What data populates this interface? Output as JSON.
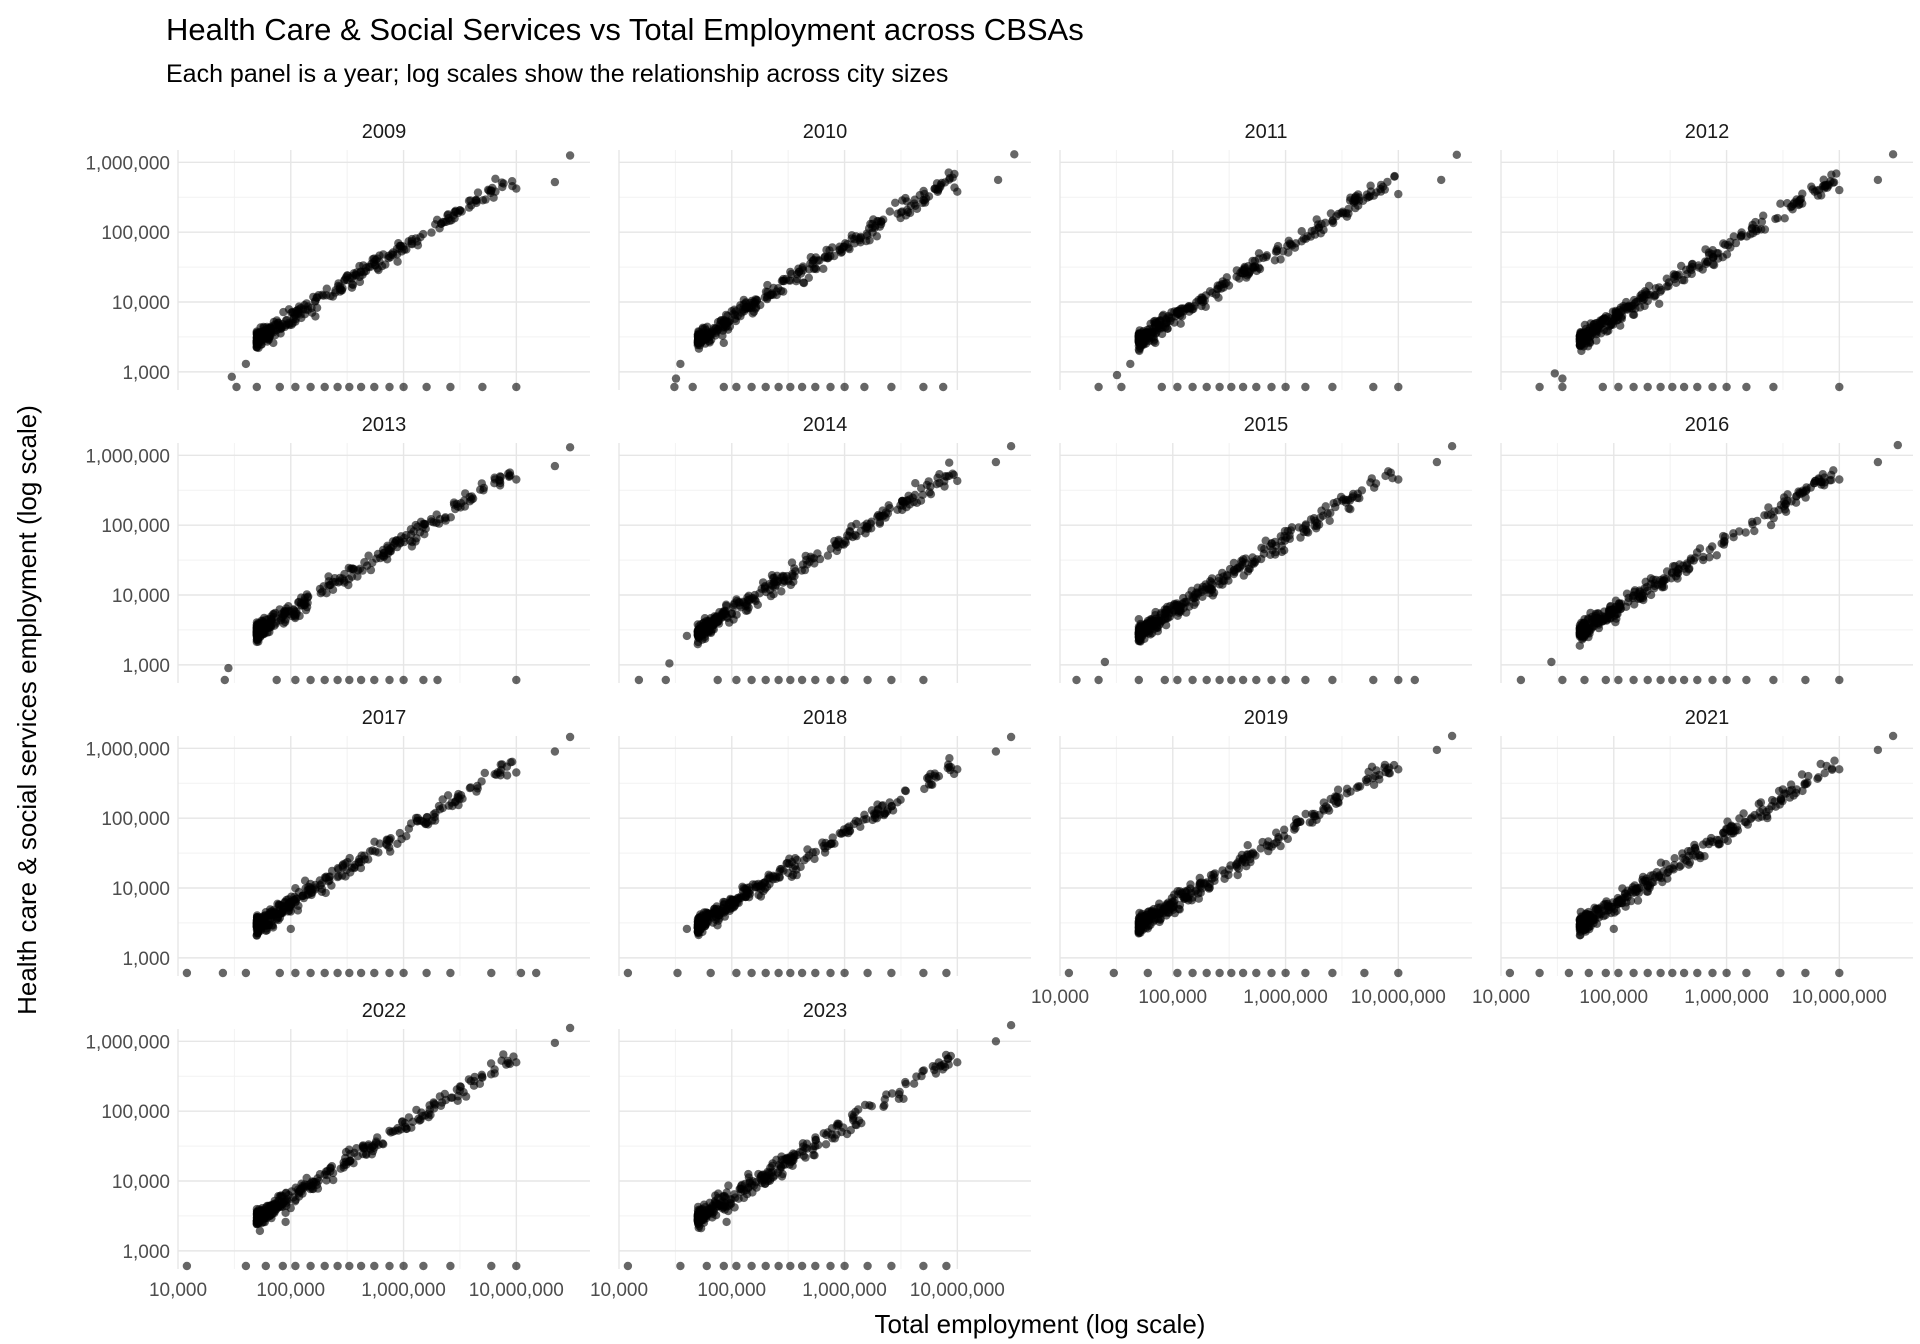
{
  "title": "Health Care & Social Services vs Total Employment across CBSAs",
  "subtitle": "Each panel is a year; log scales show the relationship across city sizes",
  "chart_data": {
    "type": "scatter",
    "facet_by": "year",
    "panels": [
      "2009",
      "2010",
      "2011",
      "2012",
      "2013",
      "2014",
      "2015",
      "2016",
      "2017",
      "2018",
      "2019",
      "2021",
      "2022",
      "2023"
    ],
    "xlabel": "Total employment (log scale)",
    "ylabel": "Health care & social services employment (log scale)",
    "x_scale": "log10",
    "y_scale": "log10",
    "xlim": [
      10000,
      45000000
    ],
    "ylim": [
      550,
      1500000
    ],
    "x_ticks": [
      10000,
      100000,
      1000000,
      10000000
    ],
    "x_tick_labels": [
      "10,000",
      "100,000",
      "1,000,000",
      "10,000,000"
    ],
    "y_ticks": [
      1000,
      10000,
      100000,
      1000000
    ],
    "y_tick_labels": [
      "1,000",
      "10,000",
      "100,000",
      "1,000,000"
    ],
    "grid": true,
    "point_color": "#000000",
    "point_alpha": 0.6,
    "trend": {
      "log_slope": 1.02,
      "log_intercept": -1.33,
      "x_range": [
        50000,
        30000000
      ]
    },
    "series": [
      {
        "panel": "2009",
        "points": [
          [
            30000,
            850
          ],
          [
            40000,
            1300
          ],
          [
            70000,
            2600
          ],
          [
            10000000,
            420000
          ],
          [
            22000000,
            520000
          ],
          [
            30000000,
            1250000
          ]
        ],
        "zero_row_x": [
          33000,
          50000,
          80000,
          110000,
          150000,
          200000,
          260000,
          330000,
          420000,
          550000,
          750000,
          1000000,
          1600000,
          2600000,
          5000000,
          10000000
        ]
      },
      {
        "panel": "2010",
        "points": [
          [
            32000,
            800
          ],
          [
            35000,
            1300
          ],
          [
            85000,
            2600
          ],
          [
            10000000,
            380000
          ],
          [
            23000000,
            560000
          ],
          [
            32000000,
            1300000
          ]
        ],
        "zero_row_x": [
          31000,
          45000,
          85000,
          110000,
          150000,
          200000,
          260000,
          330000,
          420000,
          550000,
          750000,
          1000000,
          1500000,
          2600000,
          5000000,
          7500000
        ]
      },
      {
        "panel": "2011",
        "points": [
          [
            32000,
            900
          ],
          [
            42000,
            1300
          ],
          [
            70000,
            2600
          ],
          [
            10000000,
            350000
          ],
          [
            24000000,
            560000
          ],
          [
            33000000,
            1280000
          ]
        ],
        "zero_row_x": [
          22000,
          35000,
          80000,
          110000,
          150000,
          200000,
          260000,
          330000,
          420000,
          550000,
          750000,
          1000000,
          1500000,
          2600000,
          6000000,
          10000000
        ]
      },
      {
        "panel": "2012",
        "points": [
          [
            30000,
            950
          ],
          [
            35000,
            800
          ],
          [
            70000,
            2800
          ],
          [
            10000000,
            400000
          ],
          [
            22000000,
            560000
          ],
          [
            30000000,
            1300000
          ]
        ],
        "zero_row_x": [
          22000,
          35000,
          80000,
          110000,
          150000,
          200000,
          260000,
          330000,
          420000,
          550000,
          750000,
          1000000,
          1500000,
          2600000,
          10000000
        ]
      },
      {
        "panel": "2013",
        "points": [
          [
            28000,
            900
          ],
          [
            50000,
            2700
          ],
          [
            10000000,
            450000
          ],
          [
            22000000,
            700000
          ],
          [
            30000000,
            1300000
          ]
        ],
        "zero_row_x": [
          26000,
          75000,
          110000,
          150000,
          200000,
          260000,
          330000,
          420000,
          550000,
          750000,
          1000000,
          1500000,
          2000000,
          10000000
        ]
      },
      {
        "panel": "2014",
        "points": [
          [
            28000,
            1050
          ],
          [
            40000,
            2600
          ],
          [
            10000000,
            430000
          ],
          [
            22000000,
            800000
          ],
          [
            30000000,
            1350000
          ]
        ],
        "zero_row_x": [
          15000,
          26000,
          75000,
          110000,
          150000,
          200000,
          260000,
          330000,
          420000,
          550000,
          750000,
          1000000,
          1600000,
          2600000,
          5000000
        ]
      },
      {
        "panel": "2015",
        "points": [
          [
            25000,
            1100
          ],
          [
            50000,
            4500
          ],
          [
            10000000,
            450000
          ],
          [
            22000000,
            800000
          ],
          [
            30000000,
            1350000
          ]
        ],
        "zero_row_x": [
          14000,
          22000,
          50000,
          85000,
          110000,
          150000,
          200000,
          260000,
          330000,
          420000,
          550000,
          750000,
          1000000,
          1500000,
          2600000,
          6000000,
          10000000,
          14000000
        ]
      },
      {
        "panel": "2016",
        "points": [
          [
            28000,
            1100
          ],
          [
            55000,
            4500
          ],
          [
            10000000,
            450000
          ],
          [
            22000000,
            800000
          ],
          [
            33000000,
            1400000
          ]
        ],
        "zero_row_x": [
          15000,
          35000,
          55000,
          85000,
          110000,
          150000,
          200000,
          260000,
          330000,
          420000,
          550000,
          750000,
          1000000,
          1500000,
          2600000,
          5000000,
          10000000
        ]
      },
      {
        "panel": "2017",
        "points": [
          [
            60000,
            4500
          ],
          [
            100000,
            2600
          ],
          [
            10000000,
            450000
          ],
          [
            22000000,
            900000
          ],
          [
            30000000,
            1450000
          ]
        ],
        "zero_row_x": [
          12000,
          25000,
          40000,
          80000,
          110000,
          150000,
          200000,
          260000,
          330000,
          420000,
          550000,
          750000,
          1000000,
          1600000,
          2600000,
          6000000,
          11000000,
          15000000
        ]
      },
      {
        "panel": "2018",
        "points": [
          [
            40000,
            2600
          ],
          [
            70000,
            5000
          ],
          [
            10000000,
            500000
          ],
          [
            22000000,
            900000
          ],
          [
            30000000,
            1450000
          ]
        ],
        "zero_row_x": [
          12000,
          33000,
          65000,
          110000,
          150000,
          200000,
          260000,
          330000,
          420000,
          550000,
          750000,
          1000000,
          1600000,
          2600000,
          5000000,
          8000000
        ]
      },
      {
        "panel": "2019",
        "points": [
          [
            50000,
            2700
          ],
          [
            60000,
            4500
          ],
          [
            10000000,
            500000
          ],
          [
            22000000,
            950000
          ],
          [
            30000000,
            1500000
          ]
        ],
        "zero_row_x": [
          12000,
          30000,
          60000,
          110000,
          150000,
          200000,
          260000,
          330000,
          420000,
          550000,
          750000,
          1000000,
          1500000,
          2600000,
          5000000,
          10000000
        ]
      },
      {
        "panel": "2021",
        "points": [
          [
            100000,
            2600
          ],
          [
            70000,
            5000
          ],
          [
            10000000,
            500000
          ],
          [
            22000000,
            950000
          ],
          [
            30000000,
            1500000
          ]
        ],
        "zero_row_x": [
          12000,
          22000,
          40000,
          60000,
          85000,
          110000,
          150000,
          200000,
          260000,
          330000,
          420000,
          550000,
          750000,
          1000000,
          1500000,
          3000000,
          5000000,
          10000000
        ]
      },
      {
        "panel": "2022",
        "points": [
          [
            90000,
            2600
          ],
          [
            80000,
            6000
          ],
          [
            10000000,
            500000
          ],
          [
            22000000,
            950000
          ],
          [
            30000000,
            1550000
          ]
        ],
        "zero_row_x": [
          12000,
          40000,
          60000,
          85000,
          110000,
          150000,
          200000,
          260000,
          330000,
          420000,
          550000,
          750000,
          1000000,
          1500000,
          2600000,
          6000000,
          10000000
        ]
      },
      {
        "panel": "2023",
        "points": [
          [
            90000,
            2600
          ],
          [
            85000,
            6000
          ],
          [
            10000000,
            500000
          ],
          [
            22000000,
            1000000
          ],
          [
            30000000,
            1700000
          ]
        ],
        "zero_row_x": [
          12000,
          35000,
          60000,
          85000,
          110000,
          150000,
          200000,
          260000,
          330000,
          420000,
          550000,
          750000,
          1000000,
          1600000,
          2600000,
          5000000,
          8000000
        ]
      }
    ]
  }
}
